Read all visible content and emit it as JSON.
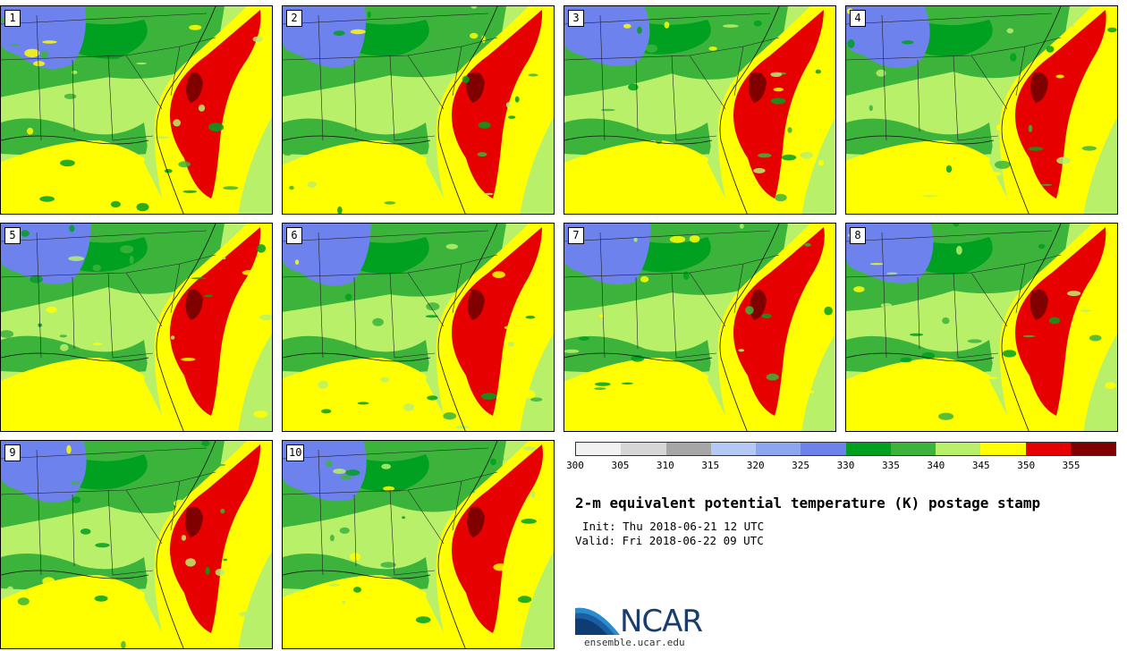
{
  "panels": [
    {
      "member": "1"
    },
    {
      "member": "2"
    },
    {
      "member": "3"
    },
    {
      "member": "4"
    },
    {
      "member": "5"
    },
    {
      "member": "6"
    },
    {
      "member": "7"
    },
    {
      "member": "8"
    },
    {
      "member": "9"
    },
    {
      "member": "10"
    }
  ],
  "colorbar": {
    "ticks": [
      "300",
      "305",
      "310",
      "315",
      "320",
      "325",
      "330",
      "335",
      "340",
      "345",
      "350",
      "355"
    ],
    "colors": [
      "#f2f2f2",
      "#d6d6d6",
      "#a6a6a6",
      "#b4c8f5",
      "#8ca6f0",
      "#6e82ee",
      "#00a020",
      "#3cb43c",
      "#b8f06a",
      "#ffff00",
      "#e60000",
      "#800000"
    ]
  },
  "title": "2-m equivalent potential temperature (K) postage stamp",
  "init": "Init: Thu 2018-06-21 12 UTC",
  "valid": "Valid: Fri 2018-06-22 09 UTC",
  "logo": {
    "name": "NCAR",
    "url": "ensemble.ucar.edu"
  },
  "field_colors": {
    "blue": "#6e82ee",
    "dark_green": "#00a020",
    "green": "#3cb43c",
    "light_green": "#b8f06a",
    "yellow": "#ffff00",
    "red": "#e60000",
    "dark_red": "#800000"
  }
}
